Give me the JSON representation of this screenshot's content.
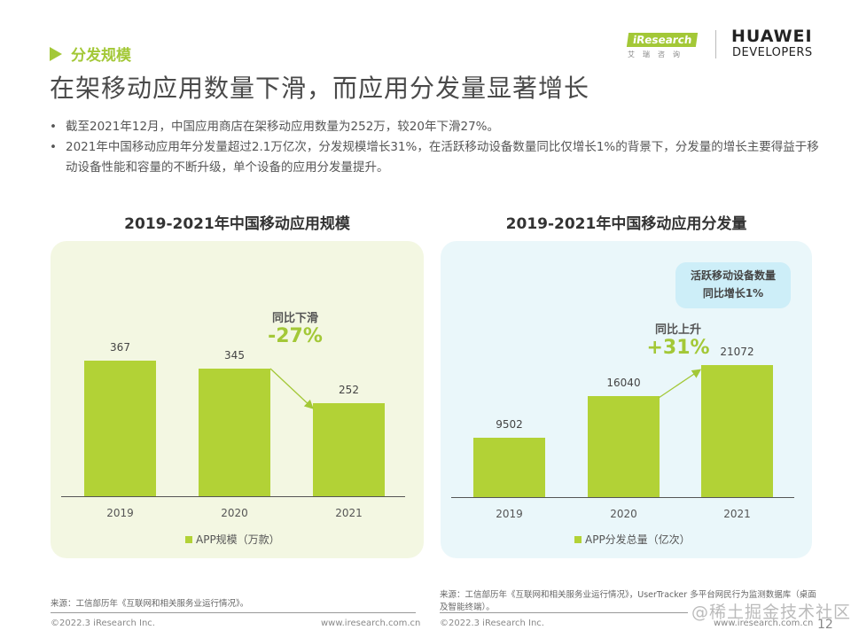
{
  "section": {
    "label": "分发规模",
    "icon": "triangle-right-icon"
  },
  "title": "在架移动应用数量下滑，而应用分发量显著增长",
  "logos": {
    "iresearch": "iResearch",
    "iresearch_sub": "艾瑞咨询",
    "huawei": "HUAWEI",
    "huawei_sub": "DEVELOPERS"
  },
  "bullets": [
    "截至2021年12月，中国应用商店在架移动应用数量为252万，较20年下滑27%。",
    "2021年中国移动应用年分发量超过2.1万亿次，分发规模增长31%，在活跃移动设备数量同比仅增长1%的背景下，分发量的增长主要得益于移动设备性能和容量的不断升级，单个设备的应用分发量提升。"
  ],
  "bullet_symbol": "•",
  "colors": {
    "accent": "#a3c837",
    "bar": "#b2d236",
    "left_panel": "#f3f7e2",
    "right_panel": "#eaf7fa",
    "callout": "#cdeef8"
  },
  "chart_data": [
    {
      "type": "bar",
      "title": "2019-2021年中国移动应用规模",
      "categories": [
        "2019",
        "2020",
        "2021"
      ],
      "values": [
        367,
        345,
        252
      ],
      "value_labels": [
        "367",
        "345",
        "252"
      ],
      "legend": "APP规模（万款）",
      "legend_position": "bottom",
      "xlabel": "",
      "ylabel": "",
      "ylim": [
        0,
        400
      ],
      "grid": false,
      "annotation": {
        "label": "同比下滑",
        "value": "-27%",
        "arrow": "2020→2021"
      }
    },
    {
      "type": "bar",
      "title": "2019-2021年中国移动应用分发量",
      "categories": [
        "2019",
        "2020",
        "2021"
      ],
      "values": [
        9502,
        16040,
        21072
      ],
      "value_labels": [
        "9502",
        "16040",
        "21072"
      ],
      "legend": "APP分发总量（亿次）",
      "legend_position": "bottom",
      "xlabel": "",
      "ylabel": "",
      "ylim": [
        0,
        25000
      ],
      "grid": false,
      "annotation": {
        "label": "同比上升",
        "value": "+31%",
        "arrow": "2020→2021"
      },
      "callout": [
        "活跃移动设备数量",
        "同比增长1%"
      ]
    }
  ],
  "sources": {
    "left": "来源：工信部历年《互联网和相关服务业运行情况》。",
    "right": "来源：工信部历年《互联网和相关服务业运行情况》，UserTracker 多平台网民行为监测数据库（桌面及智能终端）。"
  },
  "footer": {
    "copyright": "©2022.3 iResearch Inc.",
    "url": "www.iresearch.com.cn",
    "page": "12",
    "watermark": "@稀土掘金技术社区"
  }
}
